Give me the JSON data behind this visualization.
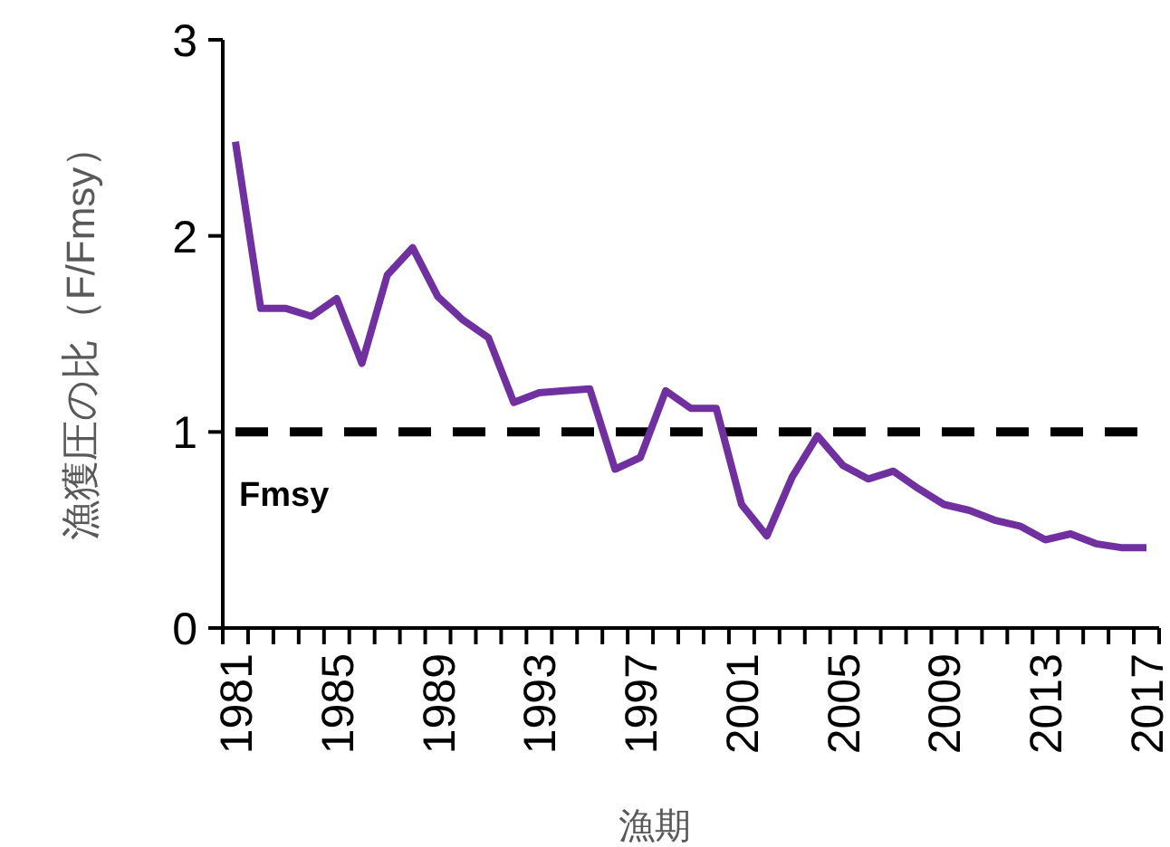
{
  "chart_data": {
    "type": "line",
    "xlabel": "漁期",
    "ylabel": "漁獲圧の比（F/Fmsy）",
    "categories": [
      "1981",
      null,
      null,
      null,
      "1985",
      null,
      null,
      null,
      "1989",
      null,
      null,
      null,
      "1993",
      null,
      null,
      null,
      "1997",
      null,
      null,
      null,
      "2001",
      null,
      null,
      null,
      "2005",
      null,
      null,
      null,
      "2009",
      null,
      null,
      null,
      "2013",
      null,
      null,
      null,
      "2017"
    ],
    "series": [
      {
        "color": "#7030a0",
        "values": [
          2.48,
          1.63,
          1.63,
          1.59,
          1.68,
          1.35,
          1.8,
          1.94,
          1.69,
          1.57,
          1.48,
          1.15,
          1.2,
          1.21,
          1.22,
          0.81,
          0.87,
          1.21,
          1.12,
          1.12,
          0.63,
          0.47,
          0.77,
          0.98,
          0.83,
          0.76,
          0.8,
          0.71,
          0.63,
          0.6,
          0.55,
          0.52,
          0.45,
          0.48,
          0.43,
          0.41,
          0.41
        ]
      }
    ],
    "ylim": [
      0,
      3
    ],
    "yticks": [
      0,
      1,
      2,
      3
    ],
    "ref_lines": [
      {
        "axis": "y",
        "value": 1,
        "label": "Fmsy",
        "color": "#000000",
        "line_style": "dashed"
      }
    ],
    "grid": false,
    "marker": "none",
    "line_style": "solid"
  }
}
